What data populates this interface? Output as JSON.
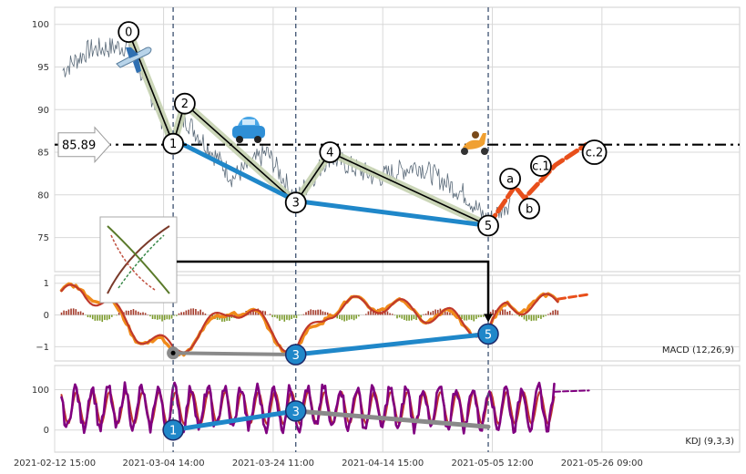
{
  "chart_data": {
    "type": "line",
    "x_tick_labels": [
      "2021-02-12 15:00",
      "2021-03-04 14:00",
      "2021-03-24 11:00",
      "2021-04-14 15:00",
      "2021-05-05 12:00",
      "2021-05-26 09:00"
    ],
    "price_panel": {
      "ylim": [
        71,
        102
      ],
      "yticks": [
        75,
        80,
        85,
        90,
        95,
        100
      ],
      "price_line_value": 85.89,
      "price_line_label": "85.89",
      "wave_points": [
        {
          "label": "0",
          "t": 0.108,
          "v": 99.1
        },
        {
          "label": "1",
          "t": 0.173,
          "v": 86.0
        },
        {
          "label": "2",
          "t": 0.19,
          "v": 90.7
        },
        {
          "label": "3",
          "t": 0.352,
          "v": 79.1
        },
        {
          "label": "4",
          "t": 0.402,
          "v": 85.0
        },
        {
          "label": "5",
          "t": 0.633,
          "v": 76.4
        },
        {
          "label": "a",
          "t": 0.665,
          "v": 81.9
        },
        {
          "label": "b",
          "t": 0.693,
          "v": 78.4
        },
        {
          "label": "c.1",
          "t": 0.71,
          "v": 83.4
        },
        {
          "label": "c.2",
          "t": 0.788,
          "v": 85.0
        }
      ],
      "projection": [
        [
          0.633,
          76.4
        ],
        [
          0.672,
          81.0
        ],
        [
          0.686,
          79.6
        ],
        [
          0.731,
          83.5
        ],
        [
          0.776,
          85.9
        ]
      ],
      "divergence_line": [
        [
          0.173,
          86.5
        ],
        [
          0.352,
          79.3
        ],
        [
          0.633,
          76.4
        ]
      ],
      "vlines_t": [
        0.173,
        0.352,
        0.633
      ],
      "icons": [
        "airplane-icon",
        "car-icon",
        "scooter-icon"
      ]
    },
    "macd_panel": {
      "label": "MACD (12,26,9)",
      "ylim": [
        -1.45,
        1.25
      ],
      "yticks": [
        -1,
        0,
        1
      ],
      "points": [
        {
          "label": "",
          "t": 0.173,
          "v": -1.2
        },
        {
          "label": "3",
          "t": 0.352,
          "v": -1.25
        },
        {
          "label": "5",
          "t": 0.633,
          "v": -0.6
        }
      ]
    },
    "kdj_panel": {
      "label": "KDJ (9,3,3)",
      "ylim": [
        -55,
        160
      ],
      "yticks": [
        0,
        100
      ],
      "points": [
        {
          "label": "1",
          "t": 0.173,
          "v": 0
        },
        {
          "label": "3",
          "t": 0.352,
          "v": 47
        },
        {
          "label": "",
          "t": 0.633,
          "v": 8
        }
      ]
    }
  }
}
